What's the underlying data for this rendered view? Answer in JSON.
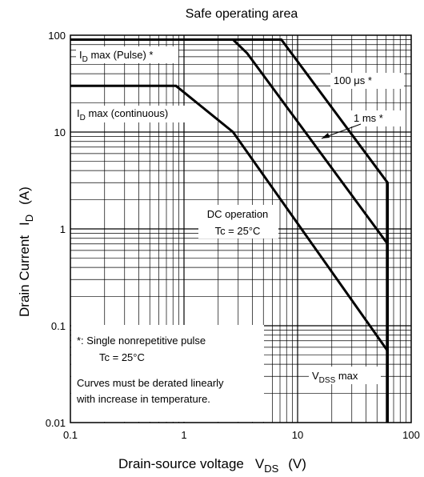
{
  "chart_data": {
    "type": "line",
    "title": "Safe operating area",
    "x_scale": "log",
    "y_scale": "log",
    "xlim": [
      0.1,
      100
    ],
    "ylim": [
      0.01,
      100
    ],
    "grid": true,
    "xlabel": {
      "main": "Drain-source voltage",
      "sym": "V",
      "sub": "DS",
      "unit": "(V)"
    },
    "ylabel": {
      "main": "Drain Current",
      "sym": "I",
      "sub": "D",
      "unit": "(A)"
    },
    "x_ticks": [
      "0.1",
      "1",
      "10",
      "100"
    ],
    "y_ticks": [
      "100",
      "10",
      "1",
      "0.1",
      "0.01"
    ],
    "series": [
      {
        "key": "pulse_limit",
        "x": [
          0.1,
          2.7
        ],
        "y": [
          90,
          90
        ]
      },
      {
        "key": "us100",
        "x": [
          0.1,
          7.2,
          62,
          62
        ],
        "y": [
          90,
          90,
          3,
          0.01
        ]
      },
      {
        "key": "ms1",
        "x": [
          2.7,
          3.6,
          62,
          62
        ],
        "y": [
          90,
          65,
          0.7,
          0.01
        ]
      },
      {
        "key": "dc",
        "x": [
          0.1,
          0.85,
          2.7,
          62,
          62
        ],
        "y": [
          30,
          30,
          10,
          0.055,
          0.01
        ]
      }
    ],
    "annotations": {
      "id_pulse": {
        "sym": "I",
        "sub": "D",
        "rest": " max (Pulse) *"
      },
      "id_cont": {
        "sym": "I",
        "sub": "D",
        "rest": " max (continuous)"
      },
      "us100": "100 μs *",
      "ms1": "1 ms *",
      "dc_line1": "DC operation",
      "dc_line2": "Tc = 25°C",
      "vdss": {
        "sym": "V",
        "sub": "DSS",
        "rest": " max"
      },
      "note_line1": "*: Single nonrepetitive pulse",
      "note_line2": "Tc = 25°C",
      "note_line3": "Curves must be derated linearly",
      "note_line4": "with increase in temperature."
    },
    "colors": {
      "line": "#000000",
      "grid": "#000000"
    }
  }
}
